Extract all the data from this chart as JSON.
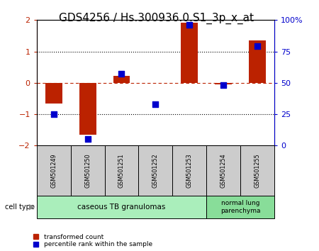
{
  "title": "GDS4256 / Hs.300936.0.S1_3p_x_at",
  "samples": [
    "GSM501249",
    "GSM501250",
    "GSM501251",
    "GSM501252",
    "GSM501253",
    "GSM501254",
    "GSM501255"
  ],
  "red_values": [
    -0.65,
    -1.65,
    0.22,
    0.0,
    1.92,
    -0.05,
    1.35
  ],
  "blue_values": [
    25,
    5,
    57,
    33,
    96,
    48,
    79
  ],
  "ylim_left": [
    -2,
    2
  ],
  "ylim_right": [
    0,
    100
  ],
  "yticks_left": [
    -2,
    -1,
    0,
    1,
    2
  ],
  "yticks_right": [
    0,
    25,
    50,
    75,
    100
  ],
  "ytick_labels_right": [
    "0",
    "25",
    "50",
    "75",
    "100%"
  ],
  "hlines_dotted": [
    -1,
    1
  ],
  "group1_label": "caseous TB granulomas",
  "group2_label": "normal lung\nparenchyma",
  "group1_count": 5,
  "group2_count": 2,
  "cell_type_label": "cell type",
  "legend_red": "transformed count",
  "legend_blue": "percentile rank within the sample",
  "bar_color": "#bb2200",
  "dot_color": "#0000cc",
  "group1_color": "#aaeebb",
  "group2_color": "#88dd99",
  "sample_box_color": "#cccccc",
  "bar_width": 0.5,
  "dot_size": 40,
  "title_fontsize": 11,
  "tick_fontsize": 8,
  "label_fontsize": 7
}
